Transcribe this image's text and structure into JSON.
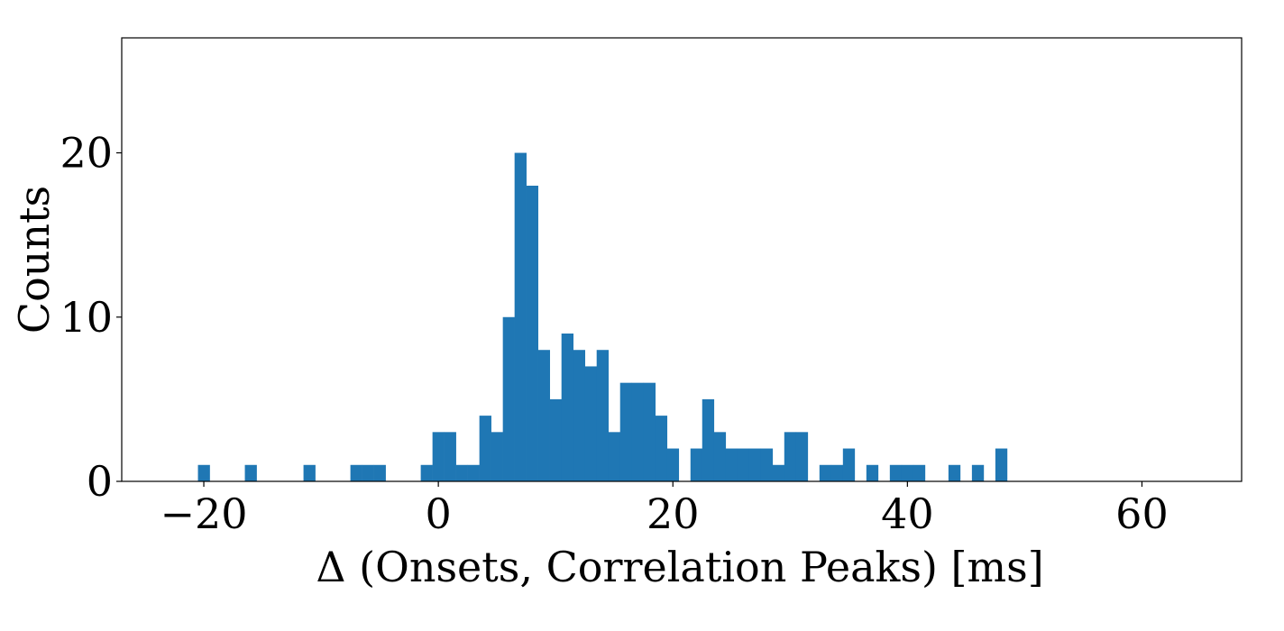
{
  "chart_data": {
    "type": "bar",
    "xlabel": "Δ (Onsets, Correlation Peaks) [ms]",
    "ylabel": "Counts",
    "xlim": [
      -27,
      68.5
    ],
    "ylim": [
      0,
      27
    ],
    "x_ticks": [
      -20,
      0,
      20,
      40,
      60
    ],
    "x_tick_labels": [
      "−20",
      "0",
      "20",
      "40",
      "60"
    ],
    "y_ticks": [
      0,
      10,
      20
    ],
    "y_tick_labels": [
      "0",
      "10",
      "20"
    ],
    "grid": false,
    "color": "#1f77b4",
    "bin_width": 1,
    "bins": [
      {
        "x0": -20.5,
        "count": 1
      },
      {
        "x0": -16.5,
        "count": 1
      },
      {
        "x0": -11.5,
        "count": 1
      },
      {
        "x0": -7.5,
        "count": 1
      },
      {
        "x0": -6.5,
        "count": 1
      },
      {
        "x0": -5.5,
        "count": 1
      },
      {
        "x0": -1.5,
        "count": 1
      },
      {
        "x0": -0.5,
        "count": 3
      },
      {
        "x0": 0.5,
        "count": 3
      },
      {
        "x0": 1.5,
        "count": 1
      },
      {
        "x0": 2.5,
        "count": 1
      },
      {
        "x0": 3.5,
        "count": 4
      },
      {
        "x0": 4.5,
        "count": 3
      },
      {
        "x0": 5.5,
        "count": 10
      },
      {
        "x0": 6.5,
        "count": 20
      },
      {
        "x0": 7.5,
        "count": 18
      },
      {
        "x0": 8.5,
        "count": 8
      },
      {
        "x0": 9.5,
        "count": 5
      },
      {
        "x0": 10.5,
        "count": 9
      },
      {
        "x0": 11.5,
        "count": 8
      },
      {
        "x0": 12.5,
        "count": 7
      },
      {
        "x0": 13.5,
        "count": 8
      },
      {
        "x0": 14.5,
        "count": 3
      },
      {
        "x0": 15.5,
        "count": 6
      },
      {
        "x0": 16.5,
        "count": 6
      },
      {
        "x0": 17.5,
        "count": 6
      },
      {
        "x0": 18.5,
        "count": 4
      },
      {
        "x0": 19.5,
        "count": 2
      },
      {
        "x0": 21.5,
        "count": 2
      },
      {
        "x0": 22.5,
        "count": 5
      },
      {
        "x0": 23.5,
        "count": 3
      },
      {
        "x0": 24.5,
        "count": 2
      },
      {
        "x0": 25.5,
        "count": 2
      },
      {
        "x0": 26.5,
        "count": 2
      },
      {
        "x0": 27.5,
        "count": 2
      },
      {
        "x0": 28.5,
        "count": 1
      },
      {
        "x0": 29.5,
        "count": 3
      },
      {
        "x0": 30.5,
        "count": 3
      },
      {
        "x0": 32.5,
        "count": 1
      },
      {
        "x0": 33.5,
        "count": 1
      },
      {
        "x0": 34.5,
        "count": 2
      },
      {
        "x0": 36.5,
        "count": 1
      },
      {
        "x0": 38.5,
        "count": 1
      },
      {
        "x0": 39.5,
        "count": 1
      },
      {
        "x0": 40.5,
        "count": 1
      },
      {
        "x0": 43.5,
        "count": 1
      },
      {
        "x0": 45.5,
        "count": 1
      },
      {
        "x0": 47.5,
        "count": 2
      }
    ]
  }
}
